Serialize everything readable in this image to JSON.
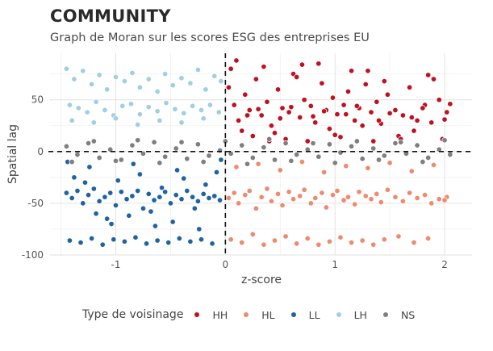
{
  "title": "COMMUNITY",
  "subtitle": "Graph de Moran sur les scores ESG des entreprises EU",
  "legend": {
    "title": "Type de voisinage",
    "items": [
      {
        "label": "HH",
        "color": "#c0111f"
      },
      {
        "label": "HL",
        "color": "#ef8a6f"
      },
      {
        "label": "LL",
        "color": "#1f63a3"
      },
      {
        "label": "LH",
        "color": "#9fcfe3"
      },
      {
        "label": "NS",
        "color": "#7f7f7f"
      }
    ]
  },
  "chart_data": {
    "type": "scatter",
    "title": "COMMUNITY",
    "subtitle": "Graph de Moran sur les scores ESG des entreprises EU",
    "xlabel": "z-score",
    "ylabel": "Spatial lag",
    "xlim": [
      -1.6,
      2.25
    ],
    "ylim": [
      -100,
      95
    ],
    "xticks": [
      -1,
      0,
      1,
      2
    ],
    "xtick_labels": [
      "-1",
      "0",
      "1",
      "2"
    ],
    "yticks": [
      -100,
      -50,
      0,
      50
    ],
    "ytick_labels": [
      "-100",
      "-50",
      "0",
      "50"
    ],
    "grid": true,
    "reference_lines": {
      "x": 0,
      "y": 0,
      "style": "dashed"
    },
    "legend_position": "bottom",
    "series": [
      {
        "name": "HH",
        "color": "#c0111f",
        "x": [
          0.03,
          0.08,
          0.12,
          0.18,
          0.22,
          0.28,
          0.33,
          0.38,
          0.42,
          0.48,
          0.52,
          0.58,
          0.62,
          0.68,
          0.72,
          0.78,
          0.82,
          0.88,
          0.92,
          0.98,
          1.02,
          1.08,
          1.12,
          1.18,
          1.22,
          1.28,
          1.33,
          1.38,
          1.42,
          1.48,
          1.55,
          1.62,
          1.68,
          1.75,
          1.82,
          1.88,
          1.95,
          2.02,
          0.05,
          0.15,
          0.25,
          0.35,
          0.45,
          0.55,
          0.65,
          0.75,
          0.85,
          0.95,
          1.05,
          1.15,
          1.25,
          1.35,
          1.45,
          1.58,
          1.72,
          1.85,
          1.98,
          0.1,
          0.4,
          0.7,
          1.0,
          1.3,
          1.6,
          1.9,
          0.2,
          0.5,
          0.8,
          1.1,
          1.4,
          1.7,
          2.0,
          0.3,
          0.6,
          0.9,
          1.2,
          1.5,
          1.8,
          2.05
        ],
        "y": [
          62,
          45,
          30,
          55,
          40,
          70,
          35,
          48,
          25,
          60,
          42,
          38,
          75,
          33,
          50,
          44,
          28,
          66,
          40,
          52,
          36,
          45,
          58,
          30,
          42,
          65,
          38,
          48,
          27,
          55,
          40,
          35,
          62,
          30,
          45,
          28,
          50,
          38,
          80,
          20,
          15,
          82,
          18,
          12,
          72,
          10,
          85,
          22,
          14,
          78,
          25,
          10,
          68,
          15,
          20,
          74,
          12,
          88,
          10,
          84,
          16,
          78,
          12,
          70,
          35,
          32,
          34,
          36,
          30,
          33,
          31,
          41,
          43,
          39,
          44,
          37,
          42,
          46
        ]
      },
      {
        "name": "HL",
        "color": "#ef8a6f",
        "x": [
          0.03,
          0.08,
          0.12,
          0.18,
          0.22,
          0.28,
          0.33,
          0.38,
          0.42,
          0.48,
          0.52,
          0.58,
          0.62,
          0.68,
          0.72,
          0.78,
          0.82,
          0.88,
          0.92,
          0.98,
          1.02,
          1.08,
          1.12,
          1.18,
          1.22,
          1.28,
          1.33,
          1.38,
          1.42,
          1.48,
          1.55,
          1.62,
          1.68,
          1.75,
          1.82,
          1.88,
          1.95,
          2.02,
          0.05,
          0.15,
          0.25,
          0.35,
          0.45,
          0.55,
          0.65,
          0.75,
          0.85,
          0.95,
          1.05,
          1.15,
          1.25,
          1.35,
          1.45,
          1.58,
          1.72,
          1.85,
          2.0,
          0.1,
          0.3,
          0.5,
          0.7,
          0.9,
          1.1,
          1.3,
          1.5,
          1.7,
          1.9
        ],
        "y": [
          -45,
          -40,
          -50,
          -42,
          -38,
          -55,
          -44,
          -36,
          -48,
          -41,
          -52,
          -39,
          -46,
          -43,
          -37,
          -50,
          -45,
          -40,
          -54,
          -42,
          -38,
          -47,
          -44,
          -51,
          -39,
          -43,
          -46,
          -41,
          -49,
          -37,
          -44,
          -48,
          -40,
          -45,
          -42,
          -50,
          -46,
          -44,
          -85,
          -88,
          -80,
          -90,
          -86,
          -82,
          -89,
          -84,
          -90,
          -87,
          -83,
          -88,
          -86,
          -90,
          -85,
          -82,
          -88,
          -84,
          -47,
          -15,
          -12,
          -18,
          -10,
          -20,
          -14,
          -16,
          -11,
          -19,
          -13
        ]
      },
      {
        "name": "LL",
        "color": "#1f63a3",
        "x": [
          -1.45,
          -1.4,
          -1.35,
          -1.3,
          -1.25,
          -1.2,
          -1.15,
          -1.1,
          -1.05,
          -1.0,
          -0.95,
          -0.9,
          -0.85,
          -0.8,
          -0.75,
          -0.7,
          -0.65,
          -0.6,
          -0.55,
          -0.5,
          -0.45,
          -0.4,
          -0.35,
          -0.3,
          -0.25,
          -0.2,
          -0.15,
          -0.1,
          -0.05,
          -1.42,
          -1.32,
          -1.22,
          -1.12,
          -1.02,
          -0.92,
          -0.82,
          -0.72,
          -0.62,
          -0.52,
          -0.42,
          -0.32,
          -0.22,
          -0.12,
          -1.38,
          -1.28,
          -1.18,
          -1.08,
          -0.98,
          -0.88,
          -0.78,
          -0.68,
          -0.58,
          -0.48,
          -0.38,
          -0.28,
          -0.18,
          -0.08,
          -1.44,
          -1.24,
          -1.04,
          -0.84,
          -0.64,
          -0.44,
          -0.24,
          -0.04
        ],
        "y": [
          -40,
          -45,
          -38,
          -50,
          -42,
          -36,
          -48,
          -44,
          -40,
          -52,
          -39,
          -46,
          -43,
          -38,
          -55,
          -41,
          -47,
          -44,
          -39,
          -50,
          -42,
          -46,
          -38,
          -44,
          -48,
          -41,
          -45,
          -43,
          -47,
          -86,
          -88,
          -84,
          -90,
          -85,
          -87,
          -83,
          -89,
          -86,
          -88,
          -84,
          -87,
          -85,
          -89,
          -25,
          -30,
          -60,
          -65,
          -28,
          -62,
          -22,
          -58,
          -35,
          -68,
          -26,
          -55,
          -32,
          -20,
          -10,
          -15,
          -70,
          -12,
          -72,
          -18,
          -75,
          -8
        ]
      },
      {
        "name": "LH",
        "color": "#9fcfe3",
        "x": [
          -1.45,
          -1.38,
          -1.3,
          -1.22,
          -1.15,
          -1.08,
          -1.0,
          -0.92,
          -0.85,
          -0.78,
          -0.7,
          -0.62,
          -0.55,
          -0.48,
          -0.4,
          -0.32,
          -0.25,
          -0.18,
          -0.1,
          -0.04,
          -1.42,
          -1.34,
          -1.26,
          -1.18,
          -1.1,
          -1.02,
          -0.94,
          -0.86,
          -0.78,
          -0.7,
          -0.62,
          -0.54,
          -0.46,
          -0.38,
          -0.3,
          -0.22,
          -0.14,
          -0.06,
          -1.4,
          -1.2,
          -1.0,
          -0.8,
          -0.6,
          -0.4,
          -0.2
        ],
        "y": [
          80,
          70,
          78,
          65,
          74,
          60,
          72,
          68,
          76,
          62,
          70,
          58,
          75,
          64,
          71,
          66,
          79,
          60,
          73,
          68,
          45,
          42,
          38,
          48,
          40,
          35,
          44,
          46,
          36,
          43,
          39,
          47,
          41,
          37,
          44,
          40,
          45,
          38,
          30,
          28,
          32,
          26,
          30,
          28,
          32
        ]
      },
      {
        "name": "NS",
        "color": "#7f7f7f",
        "x": [
          -1.45,
          -1.35,
          -1.25,
          -1.15,
          -1.05,
          -0.95,
          -0.85,
          -0.75,
          -0.65,
          -0.55,
          -0.45,
          -0.35,
          -0.25,
          -0.15,
          -0.05,
          0.05,
          0.15,
          0.25,
          0.35,
          0.45,
          0.55,
          0.65,
          0.75,
          0.85,
          0.95,
          1.05,
          1.15,
          1.25,
          1.35,
          1.45,
          1.55,
          1.65,
          1.75,
          1.85,
          1.95,
          2.05,
          -1.4,
          -1.2,
          -1.0,
          -0.8,
          -0.6,
          -0.4,
          -0.2,
          0.0,
          0.2,
          0.4,
          0.6,
          0.8,
          1.0,
          1.2,
          1.4,
          1.6,
          1.8,
          2.0
        ],
        "y": [
          5,
          -3,
          8,
          -6,
          2,
          -8,
          6,
          -2,
          9,
          -5,
          3,
          -7,
          7,
          -4,
          1,
          -2,
          6,
          -6,
          4,
          -8,
          8,
          -3,
          2,
          -5,
          7,
          -1,
          5,
          -7,
          3,
          -4,
          8,
          -2,
          6,
          -6,
          2,
          -3,
          -10,
          10,
          -9,
          11,
          -11,
          9,
          -10,
          10,
          -12,
          12,
          -9,
          8,
          -11,
          10,
          -8,
          9,
          -10,
          11
        ]
      }
    ]
  }
}
